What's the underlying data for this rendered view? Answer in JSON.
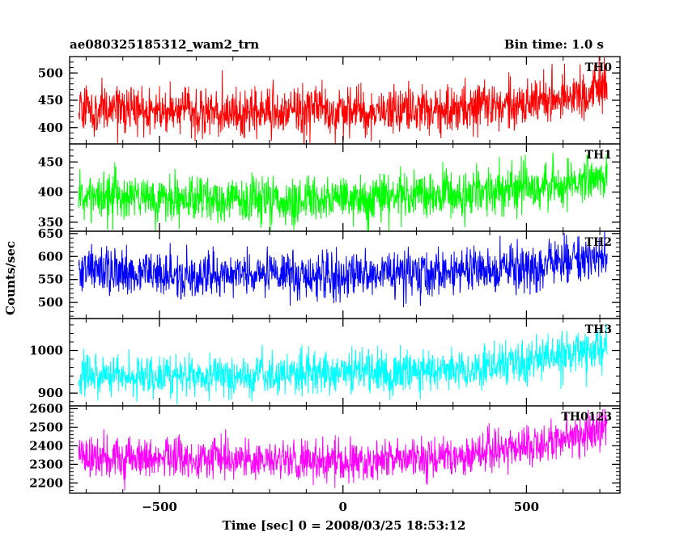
{
  "chart_data": {
    "type": "line",
    "title_left": "ae080325185312_wam2_trn",
    "title_right": "Bin time: 1.0 s",
    "xlabel": "Time [sec] 0 = 2008/03/25 18:53:12",
    "ylabel": "Counts/sec",
    "xlim": [
      -745,
      755
    ],
    "x_data_range": [
      -720,
      720
    ],
    "x_ticks": [
      -500,
      0,
      500
    ],
    "x_tick_labels": [
      "−500",
      "0",
      "500"
    ],
    "grid": false,
    "panels": [
      {
        "name": "TH0",
        "color": "#ff0000",
        "ylim": [
          370,
          530
        ],
        "y_ticks": [
          400,
          450,
          500
        ],
        "trend": {
          "x": [
            -720,
            -500,
            0,
            300,
            500,
            720
          ],
          "y": [
            432,
            430,
            428,
            432,
            445,
            468
          ]
        },
        "noise_sd": 22
      },
      {
        "name": "TH1",
        "color": "#00ff00",
        "ylim": [
          335,
          480
        ],
        "y_ticks": [
          350,
          400,
          450
        ],
        "trend": {
          "x": [
            -720,
            -500,
            0,
            300,
            500,
            720
          ],
          "y": [
            392,
            388,
            388,
            395,
            405,
            425
          ]
        },
        "noise_sd": 20
      },
      {
        "name": "TH2",
        "color": "#0000ff",
        "ylim": [
          465,
          655
        ],
        "y_ticks": [
          500,
          550,
          600,
          650
        ],
        "trend": {
          "x": [
            -720,
            -500,
            0,
            300,
            500,
            720
          ],
          "y": [
            575,
            560,
            560,
            565,
            580,
            600
          ]
        },
        "noise_sd": 25
      },
      {
        "name": "TH3",
        "color": "#00ffff",
        "ylim": [
          870,
          1075
        ],
        "y_ticks": [
          900,
          1000
        ],
        "trend": {
          "x": [
            -720,
            -500,
            0,
            300,
            500,
            720
          ],
          "y": [
            945,
            940,
            945,
            955,
            975,
            1000
          ]
        },
        "noise_sd": 25
      },
      {
        "name": "TH0123",
        "color": "#ff00ff",
        "ylim": [
          2145,
          2615
        ],
        "y_ticks": [
          2200,
          2300,
          2400,
          2500,
          2600
        ],
        "trend": {
          "x": [
            -720,
            -500,
            0,
            300,
            500,
            720
          ],
          "y": [
            2345,
            2330,
            2315,
            2335,
            2400,
            2490
          ]
        },
        "noise_sd": 55
      }
    ]
  }
}
